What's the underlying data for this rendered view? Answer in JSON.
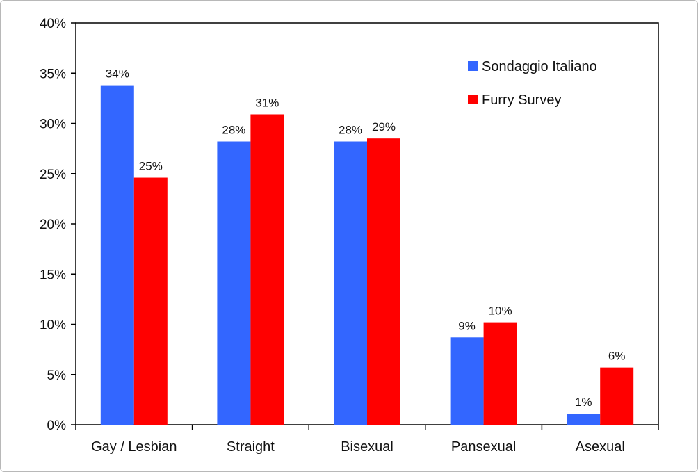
{
  "chart_data": {
    "type": "bar",
    "title": "",
    "xlabel": "",
    "ylabel": "",
    "categories": [
      "Gay / Lesbian",
      "Straight",
      "Bisexual",
      "Pansexual",
      "Asexual"
    ],
    "series": [
      {
        "name": "Sondaggio Italiano",
        "color": "#3366ff",
        "values": [
          33.8,
          28.2,
          28.2,
          8.7,
          1.1
        ],
        "labels": [
          "34%",
          "28%",
          "28%",
          "9%",
          "1%"
        ]
      },
      {
        "name": "Furry Survey",
        "color": "#ff0000",
        "values": [
          24.6,
          30.9,
          28.5,
          10.2,
          5.7
        ],
        "labels": [
          "25%",
          "31%",
          "29%",
          "10%",
          "6%"
        ]
      }
    ],
    "ylim": [
      0,
      40
    ],
    "yticks": [
      0,
      5,
      10,
      15,
      20,
      25,
      30,
      35,
      40
    ],
    "ytick_labels": [
      "0%",
      "5%",
      "10%",
      "15%",
      "20%",
      "25%",
      "30%",
      "35%",
      "40%"
    ],
    "grid": false,
    "legend_position": "top-right"
  }
}
